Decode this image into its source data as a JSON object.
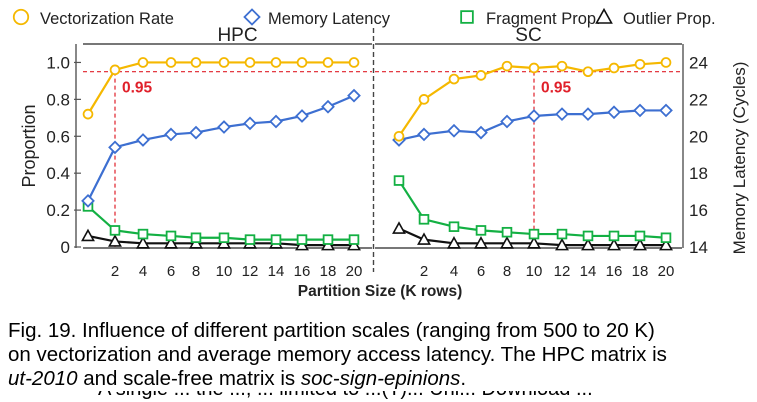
{
  "chart_data": {
    "type": "line",
    "legend": {
      "placement": "top",
      "entries": [
        {
          "name": "Vectorization Rate",
          "color": "#f5b800",
          "marker": "circle"
        },
        {
          "name": "Memory Latency",
          "color": "#3d6fd1",
          "marker": "diamond"
        },
        {
          "name": "Fragment Prop.",
          "color": "#13b043",
          "marker": "square"
        },
        {
          "name": "Outlier Prop.",
          "color": "#111111",
          "marker": "triangle"
        }
      ]
    },
    "xlabel": "Partition Size (K rows)",
    "ylabel_left": "Proportion",
    "ylabel_right": "Memory Latency (Cycles)",
    "ylim_left": [
      0,
      1.1
    ],
    "ylim_right": [
      14,
      25
    ],
    "yticks_left": [
      "0",
      "0.2",
      "0.4",
      "0.6",
      "0.8",
      "1.0"
    ],
    "yticks_right": [
      "14",
      "16",
      "18",
      "20",
      "22",
      "24"
    ],
    "xticks": [
      "2",
      "4",
      "6",
      "8",
      "10",
      "12",
      "14",
      "16",
      "18",
      "20"
    ],
    "panels": [
      {
        "title": "HPC",
        "x": [
          0.5,
          2,
          4,
          6,
          8,
          10,
          12,
          14,
          16,
          18,
          20
        ],
        "threshold": {
          "y": 0.95,
          "x": 2,
          "label": "0.95"
        },
        "series": [
          {
            "name": "Vectorization Rate",
            "axis": "left",
            "values": [
              0.72,
              0.96,
              1.0,
              1.0,
              1.0,
              1.0,
              1.0,
              1.0,
              1.0,
              1.0,
              1.0
            ]
          },
          {
            "name": "Memory Latency",
            "axis": "right",
            "values": [
              16.5,
              19.4,
              19.8,
              20.1,
              20.2,
              20.5,
              20.7,
              20.8,
              21.1,
              21.6,
              22.2
            ]
          },
          {
            "name": "Fragment Prop.",
            "axis": "left",
            "values": [
              0.22,
              0.09,
              0.07,
              0.06,
              0.05,
              0.05,
              0.04,
              0.04,
              0.04,
              0.04,
              0.04
            ]
          },
          {
            "name": "Outlier Prop.",
            "axis": "left",
            "values": [
              0.06,
              0.03,
              0.02,
              0.02,
              0.02,
              0.02,
              0.02,
              0.02,
              0.01,
              0.01,
              0.01
            ]
          }
        ]
      },
      {
        "title": "SC",
        "x": [
          0.5,
          2,
          4,
          6,
          8,
          10,
          12,
          14,
          16,
          18,
          20
        ],
        "threshold": {
          "y": 0.95,
          "x": 10,
          "label": "0.95"
        },
        "series": [
          {
            "name": "Vectorization Rate",
            "axis": "left",
            "values": [
              0.6,
              0.8,
              0.91,
              0.93,
              0.98,
              0.97,
              0.98,
              0.95,
              0.97,
              0.99,
              1.0
            ]
          },
          {
            "name": "Memory Latency",
            "axis": "right",
            "values": [
              19.8,
              20.1,
              20.3,
              20.2,
              20.8,
              21.1,
              21.2,
              21.2,
              21.3,
              21.4,
              21.4
            ]
          },
          {
            "name": "Fragment Prop.",
            "axis": "left",
            "values": [
              0.36,
              0.15,
              0.11,
              0.09,
              0.08,
              0.07,
              0.07,
              0.06,
              0.06,
              0.06,
              0.05
            ]
          },
          {
            "name": "Outlier Prop.",
            "axis": "left",
            "values": [
              0.1,
              0.04,
              0.02,
              0.02,
              0.02,
              0.02,
              0.01,
              0.01,
              0.01,
              0.01,
              0.01
            ]
          }
        ]
      }
    ]
  },
  "caption": {
    "line1": "Fig. 19. Influence of different partition scales (ranging from 500 to 20 K)",
    "line2": "on vectorization and average memory access latency. The HPC matrix is",
    "line3_italic_a": "ut-2010",
    "line3_mid": " and scale-free matrix is ",
    "line3_italic_b": "soc-sign-epinions",
    "line3_end": ".",
    "cut_line": "A single ... the ..., ... limited to ...(T)... Uni... Download ..."
  }
}
